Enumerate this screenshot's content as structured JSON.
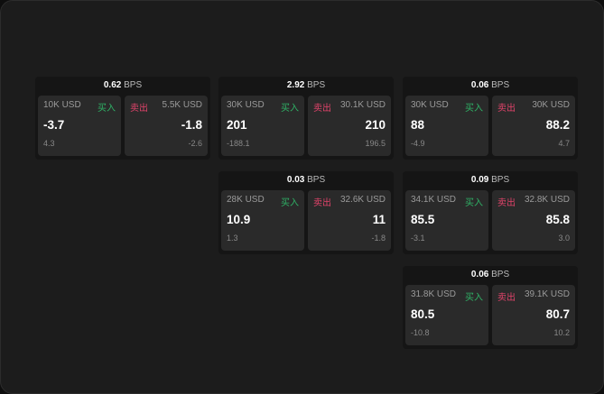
{
  "cards": [
    {
      "spread": "0.62",
      "unit": "BPS",
      "bid": {
        "size": "10K USD",
        "label": "买入",
        "price": "-3.7",
        "change": "4.3"
      },
      "ask": {
        "size": "5.5K USD",
        "label": "卖出",
        "price": "-1.8",
        "change": "-2.6"
      }
    },
    {
      "spread": "2.92",
      "unit": "BPS",
      "bid": {
        "size": "30K USD",
        "label": "买入",
        "price": "201",
        "change": "-188.1"
      },
      "ask": {
        "size": "30.1K USD",
        "label": "卖出",
        "price": "210",
        "change": "196.5"
      }
    },
    {
      "spread": "0.06",
      "unit": "BPS",
      "bid": {
        "size": "30K USD",
        "label": "买入",
        "price": "88",
        "change": "-4.9"
      },
      "ask": {
        "size": "30K USD",
        "label": "卖出",
        "price": "88.2",
        "change": "4.7"
      }
    },
    {
      "spread": "0.03",
      "unit": "BPS",
      "bid": {
        "size": "28K USD",
        "label": "买入",
        "price": "10.9",
        "change": "1.3"
      },
      "ask": {
        "size": "32.6K USD",
        "label": "卖出",
        "price": "11",
        "change": "-1.8"
      }
    },
    {
      "spread": "0.09",
      "unit": "BPS",
      "bid": {
        "size": "34.1K USD",
        "label": "买入",
        "price": "85.5",
        "change": "-3.1"
      },
      "ask": {
        "size": "32.8K USD",
        "label": "卖出",
        "price": "85.8",
        "change": "3.0"
      }
    },
    {
      "spread": "0.06",
      "unit": "BPS",
      "bid": {
        "size": "31.8K USD",
        "label": "买入",
        "price": "80.5",
        "change": "-10.8"
      },
      "ask": {
        "size": "39.1K USD",
        "label": "卖出",
        "price": "80.7",
        "change": "10.2"
      }
    }
  ],
  "colors": {
    "buy": "#2fb266",
    "sell": "#e0436a"
  }
}
